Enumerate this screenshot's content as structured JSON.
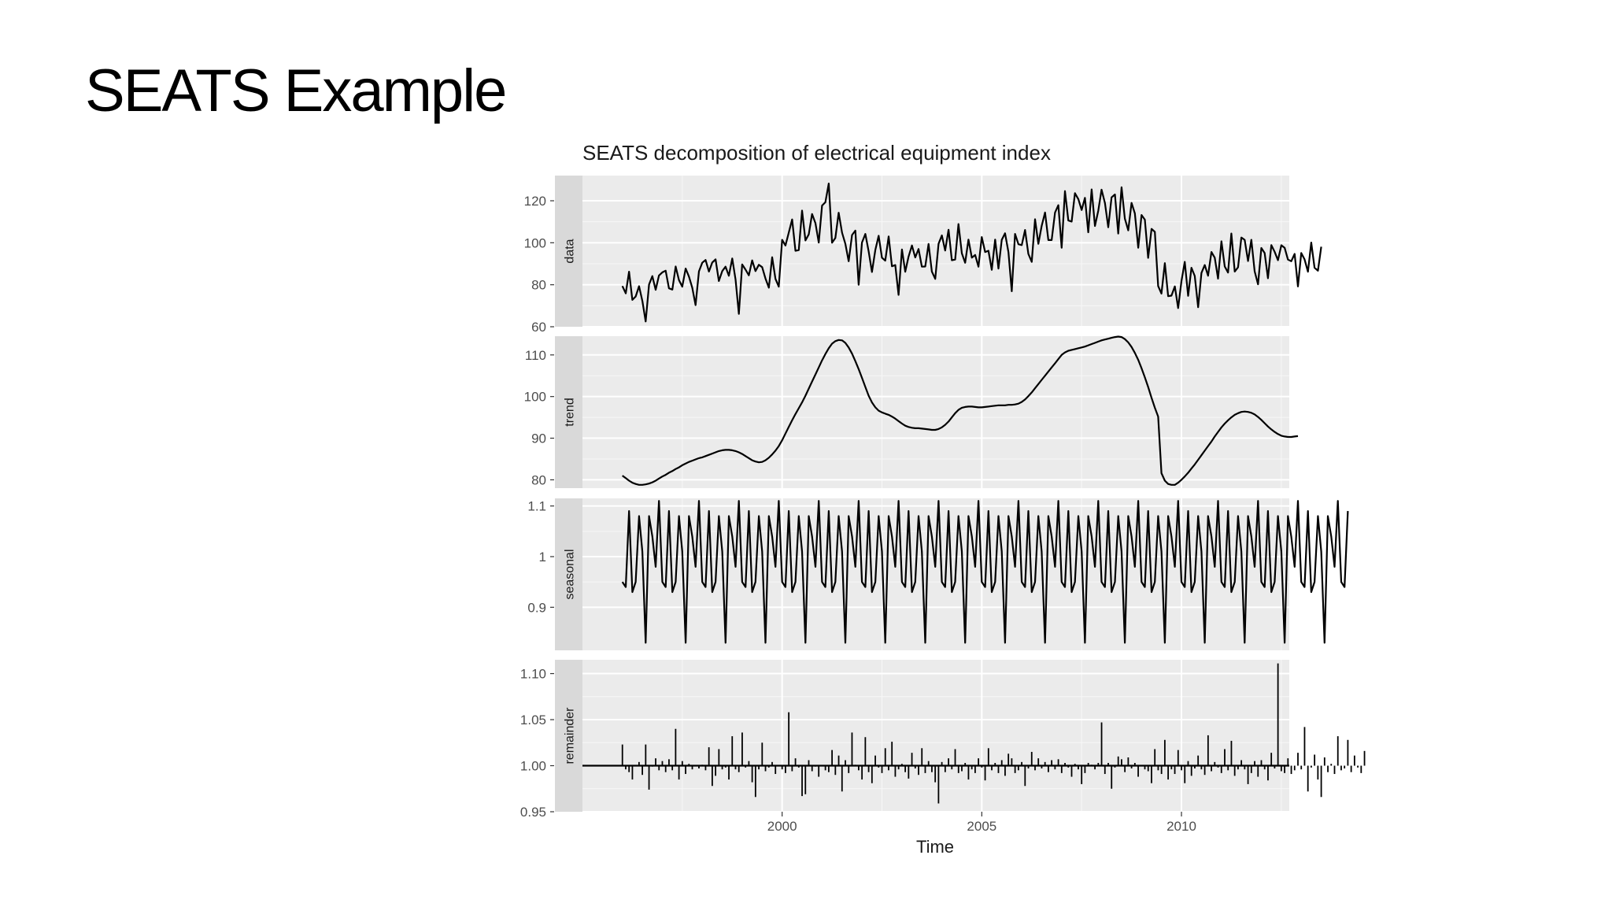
{
  "slide": {
    "title": "SEATS Example"
  },
  "chart_data": {
    "type": "line",
    "title": "SEATS decomposition of electrical equipment index",
    "xlabel": "Time",
    "x_ticks": [
      2000,
      2005,
      2010
    ],
    "x_range": [
      1995.0,
      2012.7
    ],
    "x_start": 1996.0,
    "x_step": 0.0833333,
    "grid": true,
    "panels": [
      {
        "name": "data",
        "type": "line",
        "ylim": [
          60,
          132
        ],
        "y_ticks": [
          60,
          80,
          100,
          120
        ],
        "values": [
          79.4,
          75.9,
          86.2,
          72.8,
          74.4,
          79.3,
          72.3,
          62.5,
          80.1,
          84.1,
          77.6,
          84.4,
          85.9,
          86.7,
          78.3,
          77.7,
          88.7,
          82.2,
          79.1,
          87.7,
          83.9,
          78.6,
          70.3,
          86.4,
          90.5,
          91.8,
          86.3,
          90.6,
          92.1,
          81.8,
          86.5,
          88.6,
          84.3,
          92.5,
          82.5,
          66.1,
          89.7,
          87.2,
          84.5,
          91.6,
          86.5,
          89.5,
          88.4,
          83.0,
          78.6,
          93.1,
          82.8,
          79.1,
          101.4,
          98.7,
          104.8,
          111.1,
          96.2,
          96.5,
          115.3,
          101.1,
          104.0,
          113.7,
          109.3,
          100.1,
          117.7,
          119.3,
          128.2,
          100.0,
          102.3,
          114.3,
          104.8,
          99.5,
          91.2,
          103.7,
          105.8,
          80.0,
          100.1,
          104.2,
          95.9,
          86.1,
          96.6,
          103.3,
          92.9,
          91.5,
          103.0,
          88.8,
          89.4,
          75.2,
          96.8,
          86.2,
          93.4,
          98.7,
          93.0,
          97.0,
          88.6,
          88.7,
          99.4,
          86.3,
          82.8,
          99.5,
          103.5,
          96.3,
          106.2,
          91.7,
          92.0,
          108.9,
          95.0,
          90.5,
          101.5,
          92.9,
          94.2,
          88.6,
          102.7,
          95.6,
          96.2,
          87.1,
          101.5,
          87.7,
          101.4,
          104.5,
          95.5,
          76.9,
          104.2,
          99.3,
          98.9,
          106.1,
          94.7,
          90.9,
          111.2,
          99.5,
          108.0,
          114.4,
          101.3,
          101.3,
          114.4,
          117.9,
          97.6,
          124.6,
          110.6,
          110.1,
          123.6,
          120.8,
          115.6,
          121.4,
          105.0,
          125.4,
          108.0,
          115.2,
          125.3,
          118.9,
          107.4,
          121.6,
          123.0,
          104.4,
          126.4,
          111.5,
          105.9,
          119.0,
          114.0,
          97.6,
          113.2,
          111.0,
          92.8,
          106.6,
          105.2,
          79.4,
          75.8,
          90.3,
          74.6,
          74.8,
          79.2,
          68.9,
          81.7,
          90.9,
          74.7,
          88.1,
          84.2,
          69.3,
          85.6,
          89.4,
          84.3,
          95.6,
          92.9,
          82.9,
          100.7,
          88.7,
          85.8,
          104.4,
          86.3,
          88.3,
          102.5,
          101.4,
          91.3,
          101.4,
          86.4,
          80.2,
          97.5,
          95.1,
          83.1,
          98.9,
          95.7,
          91.7,
          98.8,
          97.6,
          92.0,
          91.2,
          94.7,
          79.2,
          95.1,
          92.1,
          86.2,
          100.1,
          88.1,
          86.7,
          98.1
        ]
      },
      {
        "name": "trend",
        "type": "line",
        "ylim": [
          78,
          114.5
        ],
        "y_ticks": [
          80,
          90,
          100,
          110
        ],
        "values": [
          81.0,
          80.4,
          79.8,
          79.3,
          79.0,
          78.8,
          78.8,
          78.9,
          79.1,
          79.4,
          79.8,
          80.3,
          80.8,
          81.2,
          81.7,
          82.1,
          82.6,
          83.0,
          83.5,
          83.9,
          84.3,
          84.6,
          84.9,
          85.2,
          85.4,
          85.7,
          86.0,
          86.3,
          86.6,
          86.9,
          87.1,
          87.2,
          87.2,
          87.1,
          86.9,
          86.6,
          86.2,
          85.7,
          85.2,
          84.7,
          84.4,
          84.2,
          84.3,
          84.7,
          85.3,
          86.1,
          87.0,
          88.1,
          89.5,
          91.1,
          92.7,
          94.3,
          95.8,
          97.2,
          98.6,
          100.2,
          101.9,
          103.6,
          105.3,
          107.0,
          108.7,
          110.2,
          111.6,
          112.7,
          113.3,
          113.6,
          113.5,
          112.9,
          111.8,
          110.3,
          108.5,
          106.6,
          104.5,
          102.3,
          100.2,
          98.6,
          97.4,
          96.6,
          96.2,
          95.9,
          95.6,
          95.2,
          94.7,
          94.1,
          93.5,
          93.0,
          92.7,
          92.5,
          92.4,
          92.4,
          92.3,
          92.2,
          92.1,
          92.0,
          92.0,
          92.2,
          92.6,
          93.2,
          94.0,
          95.0,
          96.0,
          96.8,
          97.3,
          97.5,
          97.6,
          97.6,
          97.5,
          97.4,
          97.4,
          97.5,
          97.6,
          97.7,
          97.8,
          97.9,
          97.9,
          97.9,
          98.0,
          98.0,
          98.1,
          98.3,
          98.7,
          99.3,
          100.1,
          101.0,
          102.0,
          103.0,
          104.0,
          105.0,
          106.0,
          107.0,
          108.0,
          109.0,
          110.0,
          110.6,
          111.0,
          111.2,
          111.4,
          111.6,
          111.8,
          112.0,
          112.3,
          112.6,
          112.9,
          113.2,
          113.5,
          113.7,
          113.9,
          114.1,
          114.3,
          114.4,
          114.3,
          113.8,
          113.0,
          111.9,
          110.5,
          108.8,
          106.8,
          104.6,
          102.3,
          99.7,
          97.3,
          95.2,
          81.6,
          79.8,
          79.0,
          78.8,
          78.8,
          79.3,
          80.0,
          80.8,
          81.7,
          82.7,
          83.7,
          84.8,
          85.9,
          87.0,
          88.1,
          89.2,
          90.4,
          91.5,
          92.6,
          93.5,
          94.3,
          95.0,
          95.6,
          96.0,
          96.3,
          96.4,
          96.3,
          96.1,
          95.7,
          95.1,
          94.4,
          93.6,
          92.8,
          92.1,
          91.5,
          91.0,
          90.6,
          90.4,
          90.3,
          90.3,
          90.4,
          90.5
        ]
      },
      {
        "name": "seasonal",
        "type": "line",
        "ylim": [
          0.815,
          1.115
        ],
        "y_ticks": [
          0.9,
          1.0,
          1.1
        ],
        "values": [
          0.95,
          0.94,
          1.09,
          0.93,
          0.95,
          1.08,
          1.01,
          0.83,
          1.08,
          1.04,
          0.98,
          1.11,
          0.95,
          0.94,
          1.09,
          0.93,
          0.95,
          1.08,
          1.01,
          0.83,
          1.08,
          1.04,
          0.98,
          1.11,
          0.95,
          0.94,
          1.09,
          0.93,
          0.95,
          1.08,
          1.01,
          0.83,
          1.08,
          1.04,
          0.98,
          1.11,
          0.95,
          0.94,
          1.09,
          0.93,
          0.95,
          1.08,
          1.01,
          0.83,
          1.08,
          1.04,
          0.98,
          1.11,
          0.95,
          0.94,
          1.09,
          0.93,
          0.95,
          1.08,
          1.01,
          0.83,
          1.08,
          1.04,
          0.98,
          1.11,
          0.95,
          0.94,
          1.09,
          0.93,
          0.95,
          1.08,
          1.01,
          0.83,
          1.08,
          1.04,
          0.98,
          1.11,
          0.95,
          0.94,
          1.09,
          0.93,
          0.95,
          1.08,
          1.01,
          0.83,
          1.08,
          1.04,
          0.98,
          1.11,
          0.95,
          0.94,
          1.09,
          0.93,
          0.95,
          1.08,
          1.01,
          0.83,
          1.08,
          1.04,
          0.98,
          1.11,
          0.95,
          0.94,
          1.09,
          0.93,
          0.95,
          1.08,
          1.01,
          0.83,
          1.08,
          1.04,
          0.98,
          1.11,
          0.95,
          0.94,
          1.09,
          0.93,
          0.95,
          1.08,
          1.01,
          0.83,
          1.08,
          1.04,
          0.98,
          1.11,
          0.95,
          0.94,
          1.09,
          0.93,
          0.95,
          1.08,
          1.01,
          0.83,
          1.08,
          1.04,
          0.98,
          1.11,
          0.95,
          0.94,
          1.09,
          0.93,
          0.95,
          1.08,
          1.01,
          0.83,
          1.08,
          1.04,
          0.98,
          1.11,
          0.95,
          0.94,
          1.09,
          0.93,
          0.95,
          1.08,
          1.01,
          0.83,
          1.08,
          1.04,
          0.98,
          1.11,
          0.95,
          0.94,
          1.09,
          0.93,
          0.95,
          1.08,
          1.01,
          0.83,
          1.08,
          1.04,
          0.98,
          1.11,
          0.95,
          0.94,
          1.09,
          0.93,
          0.95,
          1.08,
          1.01,
          0.83,
          1.08,
          1.04,
          0.98,
          1.11,
          0.95,
          0.94,
          1.09,
          0.93,
          0.95,
          1.08,
          1.01,
          0.83,
          1.08,
          1.04,
          0.98,
          1.11,
          0.95,
          0.94,
          1.09,
          0.93,
          0.95,
          1.08,
          1.01,
          0.83,
          1.08,
          1.04,
          0.98,
          1.11,
          0.95,
          0.94,
          1.09,
          0.93,
          0.95,
          1.08,
          1.01,
          0.83,
          1.08,
          1.04,
          0.98,
          1.11,
          0.95,
          0.94,
          1.09
        ]
      },
      {
        "name": "remainder",
        "type": "bar",
        "baseline": 1.0,
        "ylim": [
          0.95,
          1.115
        ],
        "y_ticks": [
          0.95,
          1.0,
          1.05,
          1.1
        ],
        "y_tick_labels": [
          "0.95",
          "1.00",
          "1.05",
          "1.10"
        ],
        "values": [
          1.023,
          0.996,
          0.993,
          0.985,
          1.0,
          1.004,
          0.99,
          1.023,
          0.974,
          0.999,
          1.008,
          0.995,
          1.005,
          0.993,
          1.007,
          0.995,
          1.04,
          0.985,
          1.005,
          0.991,
          1.002,
          0.996,
          1.0,
          0.997,
          1.001,
          0.995,
          1.02,
          0.978,
          0.989,
          1.018,
          0.996,
          0.998,
          0.985,
          1.032,
          0.996,
          0.993,
          1.036,
          0.998,
          1.005,
          0.982,
          0.966,
          0.996,
          1.025,
          0.994,
          0.998,
          1.004,
          0.991,
          1.0,
          0.996,
          0.992,
          1.058,
          0.994,
          1.008,
          0.998,
          0.967,
          0.969,
          1.006,
          0.994,
          0.999,
          0.988,
          1.0,
          0.995,
          0.993,
          1.017,
          0.99,
          1.011,
          0.972,
          1.006,
          0.992,
          1.036,
          1.001,
          0.995,
          0.985,
          1.031,
          0.993,
          0.981,
          1.011,
          0.998,
          0.992,
          1.019,
          0.995,
          1.026,
          0.988,
          0.996,
          1.002,
          0.993,
          0.986,
          1.014,
          0.997,
          0.99,
          1.019,
          0.992,
          1.005,
          0.993,
          0.982,
          0.959,
          1.004,
          0.993,
          1.008,
          0.996,
          1.018,
          0.992,
          0.994,
          1.003,
          0.985,
          0.996,
          0.992,
          1.008,
          0.998,
          0.984,
          1.019,
          0.995,
          1.003,
          0.992,
          1.006,
          0.989,
          1.013,
          1.008,
          0.992,
          0.995,
          1.004,
          0.978,
          0.997,
          1.015,
          0.995,
          1.008,
          0.997,
          1.004,
          0.993,
          1.006,
          0.996,
          1.007,
          0.992,
          1.003,
          0.998,
          0.988,
          1.002,
          0.996,
          0.98,
          0.992,
          1.003,
          1.001,
          0.996,
          1.003,
          1.047,
          0.991,
          1.003,
          0.975,
          0.998,
          1.01,
          1.007,
          0.993,
          1.009,
          0.997,
          1.003,
          0.988,
          1.0,
          0.996,
          0.994,
          0.981,
          1.018,
          0.995,
          0.991,
          1.028,
          0.985,
          0.996,
          0.991,
          1.017,
          0.995,
          0.981,
          1.005,
          0.989,
          0.997,
          1.011,
          0.996,
          0.99,
          1.033,
          0.994,
          1.004,
          0.998,
          0.992,
          1.018,
          0.995,
          1.027,
          0.989,
          0.996,
          1.006,
          0.996,
          0.98,
          0.992,
          1.005,
          0.988,
          1.006,
          0.996,
          0.984,
          1.014,
          0.997,
          1.111,
          0.994,
          0.992,
          1.008,
          0.991,
          0.995,
          1.014,
          0.996,
          1.042,
          0.972,
          0.998,
          1.012,
          0.985,
          0.966,
          1.009,
          0.993,
          1.002,
          0.991,
          1.032,
          0.995,
          0.997,
          1.028,
          0.993,
          1.011,
          0.998,
          0.992,
          1.016
        ]
      }
    ]
  }
}
